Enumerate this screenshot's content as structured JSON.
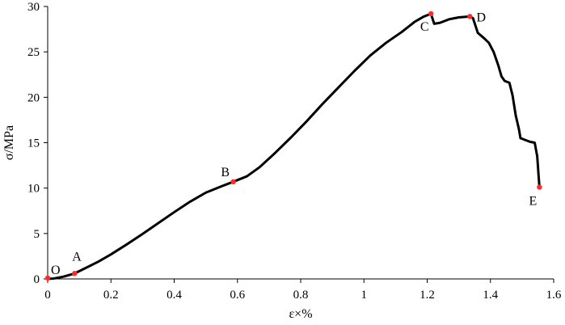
{
  "chart_data": {
    "type": "line",
    "title": "",
    "xlabel": "ε×%",
    "ylabel": "σ/MPa",
    "xlim": [
      0,
      1.6
    ],
    "ylim": [
      0,
      30
    ],
    "x_ticks": [
      0,
      0.2,
      0.4,
      0.6,
      0.8,
      1,
      1.2,
      1.4,
      1.6
    ],
    "x_tick_labels": [
      "0",
      "0.2",
      "0.4",
      "0.6",
      "0.8",
      "1",
      "1.2",
      "1.4",
      "1.6"
    ],
    "y_ticks": [
      0,
      5,
      10,
      15,
      20,
      25,
      30
    ],
    "y_tick_labels": [
      "0",
      "5",
      "10",
      "15",
      "20",
      "25",
      "30"
    ],
    "grid": false,
    "line_color": "#000000",
    "marker_color": "#ff2a2a",
    "series": [
      {
        "x": [
          0,
          0.02,
          0.05,
          0.085,
          0.12,
          0.16,
          0.2,
          0.25,
          0.3,
          0.35,
          0.4,
          0.45,
          0.5,
          0.55,
          0.587,
          0.63,
          0.67,
          0.72,
          0.77,
          0.82,
          0.87,
          0.92,
          0.97,
          1.02,
          1.07,
          1.12,
          1.16,
          1.19,
          1.212,
          1.222,
          1.24,
          1.27,
          1.3,
          1.335,
          1.345,
          1.36,
          1.38,
          1.395,
          1.41,
          1.425,
          1.435,
          1.445,
          1.46,
          1.47,
          1.48,
          1.49,
          1.495,
          1.51,
          1.525,
          1.54,
          1.548,
          1.552,
          1.555
        ],
        "y": [
          0,
          0.05,
          0.25,
          0.6,
          1.2,
          1.9,
          2.7,
          3.8,
          4.95,
          6.15,
          7.35,
          8.5,
          9.5,
          10.2,
          10.7,
          11.3,
          12.3,
          13.9,
          15.6,
          17.4,
          19.3,
          21.1,
          22.9,
          24.6,
          26.0,
          27.2,
          28.3,
          28.9,
          29.2,
          28.1,
          28.2,
          28.6,
          28.8,
          28.9,
          28.7,
          27.1,
          26.5,
          26.0,
          25.0,
          23.5,
          22.3,
          21.8,
          21.6,
          20.2,
          18.0,
          16.5,
          15.5,
          15.3,
          15.1,
          15.0,
          13.5,
          11.5,
          10.1
        ]
      }
    ],
    "points": [
      {
        "label": "O",
        "x": 0,
        "y": 0.1
      },
      {
        "label": "A",
        "x": 0.085,
        "y": 0.6
      },
      {
        "label": "B",
        "x": 0.587,
        "y": 10.7
      },
      {
        "label": "C",
        "x": 1.212,
        "y": 29.2
      },
      {
        "label": "D",
        "x": 1.335,
        "y": 28.9
      },
      {
        "label": "E",
        "x": 1.555,
        "y": 10.1
      }
    ]
  }
}
